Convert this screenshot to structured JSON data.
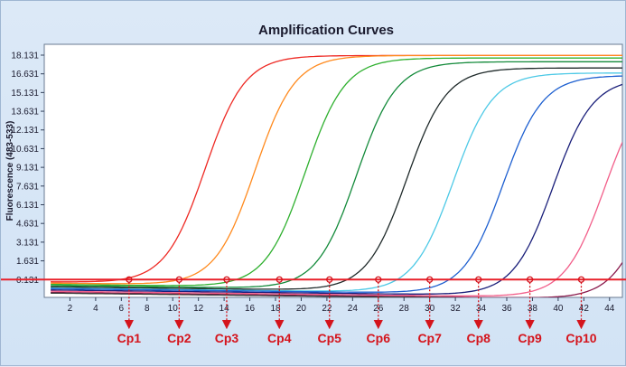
{
  "chart_data": {
    "type": "line",
    "title": "Amplification Curves",
    "xlabel": "",
    "ylabel": "Fluorescence (483-533)",
    "xlim": [
      0,
      45
    ],
    "ylim": [
      -1.3,
      19.0
    ],
    "grid": false,
    "legend": "none",
    "x_ticks": [
      "2",
      "4",
      "6",
      "8",
      "10",
      "12",
      "14",
      "16",
      "18",
      "20",
      "22",
      "24",
      "26",
      "28",
      "30",
      "32",
      "34",
      "36",
      "38",
      "40",
      "42",
      "44"
    ],
    "y_ticks": [
      "18.131",
      "16.631",
      "15.131",
      "13.631",
      "12.131",
      "10.631",
      "9.131",
      "7.631",
      "6.131",
      "4.631",
      "3.131",
      "1.631",
      "0.131"
    ],
    "threshold": 0.131,
    "threshold_color": "#e8202a",
    "cp_labels": [
      {
        "label": "Cp1",
        "x": 6.6
      },
      {
        "label": "Cp2",
        "x": 10.5
      },
      {
        "label": "Cp3",
        "x": 14.2
      },
      {
        "label": "Cp4",
        "x": 18.3
      },
      {
        "label": "Cp5",
        "x": 22.2
      },
      {
        "label": "Cp6",
        "x": 26.0
      },
      {
        "label": "Cp7",
        "x": 30.0
      },
      {
        "label": "Cp8",
        "x": 33.8
      },
      {
        "label": "Cp9",
        "x": 37.8
      },
      {
        "label": "Cp10",
        "x": 41.8
      }
    ],
    "cp_color": "#d4141c",
    "series": [
      {
        "color": "#ee2a24",
        "midpoint": 12.5,
        "plateau": 18.1,
        "baseline": -0.05
      },
      {
        "color": "#ff8a1e",
        "midpoint": 16.4,
        "plateau": 18.1,
        "baseline": -0.15
      },
      {
        "color": "#2fb02f",
        "midpoint": 20.3,
        "plateau": 17.9,
        "baseline": -0.25
      },
      {
        "color": "#138a3a",
        "midpoint": 24.3,
        "plateau": 17.6,
        "baseline": -0.35
      },
      {
        "color": "#1f2a2a",
        "midpoint": 28.2,
        "plateau": 17.1,
        "baseline": -0.45
      },
      {
        "color": "#4dc9e6",
        "midpoint": 31.8,
        "plateau": 16.7,
        "baseline": -0.55
      },
      {
        "color": "#1d5fd0",
        "midpoint": 35.7,
        "plateau": 16.5,
        "baseline": -0.6
      },
      {
        "color": "#1a1f7a",
        "midpoint": 39.6,
        "plateau": 16.3,
        "baseline": -0.7
      },
      {
        "color": "#f25f8a",
        "midpoint": 43.6,
        "plateau": 16.2,
        "baseline": -0.8
      },
      {
        "color": "#8a1a4c",
        "midpoint": 47.5,
        "plateau": 16.2,
        "baseline": -0.9
      },
      {
        "color": "#3a3a3a",
        "midpoint": 99,
        "plateau": 0,
        "baseline": -0.95,
        "flat": true
      }
    ]
  }
}
